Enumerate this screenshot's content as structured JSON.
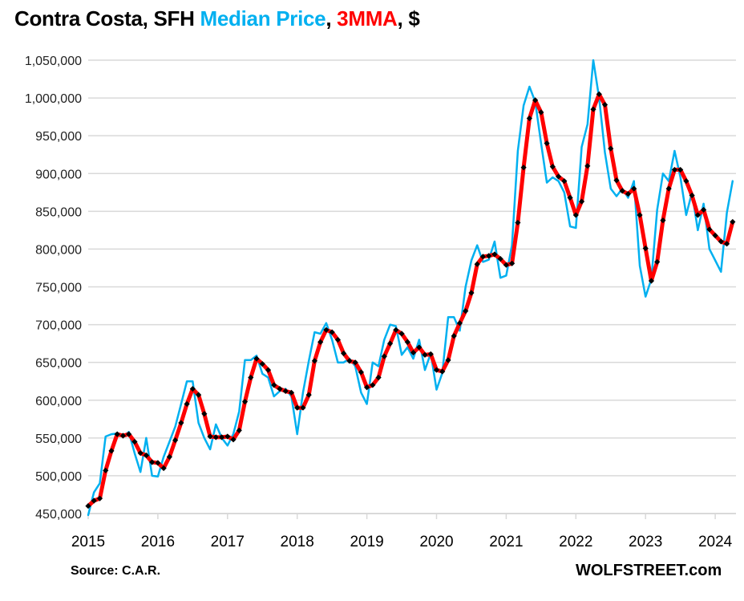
{
  "title": {
    "part1": "Contra Costa, SFH ",
    "part2": "Median Price",
    "part3": ", ",
    "part4": "3MMA",
    "part5": ", $",
    "colors": {
      "black": "#000000",
      "median": "#00b0f0",
      "mma": "#ff0000"
    }
  },
  "footer": {
    "source": "Source: C.A.R.",
    "brand": "WOLFSTREET.com"
  },
  "chart_data": {
    "type": "line",
    "title": "Contra Costa, SFH Median Price, 3MMA, $",
    "xlabel": "",
    "ylabel": "",
    "ylim": [
      450000,
      1050000
    ],
    "yticks": [
      450000,
      500000,
      550000,
      600000,
      650000,
      700000,
      750000,
      800000,
      850000,
      900000,
      950000,
      1000000,
      1050000
    ],
    "ytick_labels": [
      "450,000",
      "500,000",
      "550,000",
      "600,000",
      "650,000",
      "700,000",
      "750,000",
      "800,000",
      "850,000",
      "900,000",
      "950,000",
      "1,000,000",
      "1,050,000"
    ],
    "xtick_labels": [
      "2015",
      "2016",
      "2017",
      "2018",
      "2019",
      "2020",
      "2021",
      "2022",
      "2023",
      "2024"
    ],
    "x_start": "2015-01",
    "x_frequency": "monthly",
    "grid": "horizontal",
    "legend": "in-title",
    "series": [
      {
        "name": "Median Price",
        "color": "#00b0f0",
        "markers": false,
        "values": [
          448000,
          478000,
          490000,
          552000,
          555000,
          556000,
          552000,
          558000,
          530000,
          505000,
          550000,
          500000,
          499000,
          525000,
          545000,
          565000,
          595000,
          625000,
          625000,
          570000,
          550000,
          535000,
          568000,
          550000,
          540000,
          555000,
          585000,
          653000,
          653000,
          659000,
          635000,
          630000,
          605000,
          612000,
          615000,
          605000,
          555000,
          610000,
          652000,
          690000,
          688000,
          702000,
          680000,
          650000,
          650000,
          655000,
          645000,
          610000,
          595000,
          650000,
          645000,
          680000,
          700000,
          698000,
          660000,
          670000,
          655000,
          680000,
          640000,
          662000,
          614000,
          636000,
          710000,
          710000,
          692000,
          750000,
          785000,
          805000,
          783000,
          786000,
          810000,
          762000,
          765000,
          805000,
          930000,
          990000,
          1015000,
          995000,
          940000,
          888000,
          895000,
          890000,
          875000,
          830000,
          828000,
          935000,
          965000,
          1050000,
          1000000,
          928000,
          880000,
          870000,
          880000,
          868000,
          890000,
          778000,
          737000,
          760000,
          852000,
          900000,
          890000,
          930000,
          895000,
          845000,
          875000,
          825000,
          860000,
          800000,
          785000,
          770000,
          848000,
          890000
        ]
      },
      {
        "name": "3MMA",
        "color": "#ff0000",
        "markers": true,
        "marker_color": "#000000",
        "values": [
          460000,
          467000,
          470000,
          507000,
          533000,
          555000,
          553000,
          555000,
          545000,
          530000,
          527000,
          518000,
          517000,
          510000,
          525000,
          547000,
          570000,
          595000,
          615000,
          607000,
          582000,
          552000,
          551000,
          551000,
          552000,
          548000,
          560000,
          598000,
          630000,
          655000,
          648000,
          640000,
          620000,
          615000,
          612000,
          610000,
          590000,
          590000,
          607000,
          652000,
          677000,
          693000,
          690000,
          680000,
          662000,
          652000,
          650000,
          637000,
          617000,
          620000,
          630000,
          658000,
          675000,
          693000,
          688000,
          677000,
          663000,
          670000,
          660000,
          661000,
          640000,
          638000,
          653000,
          685000,
          702000,
          718000,
          742000,
          780000,
          790000,
          791000,
          793000,
          787000,
          779000,
          781000,
          835000,
          908000,
          973000,
          997000,
          981000,
          940000,
          909000,
          896000,
          890000,
          868000,
          845000,
          863000,
          910000,
          985000,
          1005000,
          991000,
          933000,
          891000,
          877000,
          873000,
          880000,
          845000,
          801000,
          758000,
          783000,
          838000,
          880000,
          905000,
          905000,
          890000,
          871000,
          845000,
          852000,
          826000,
          818000,
          810000,
          807000,
          836000
        ]
      }
    ]
  }
}
